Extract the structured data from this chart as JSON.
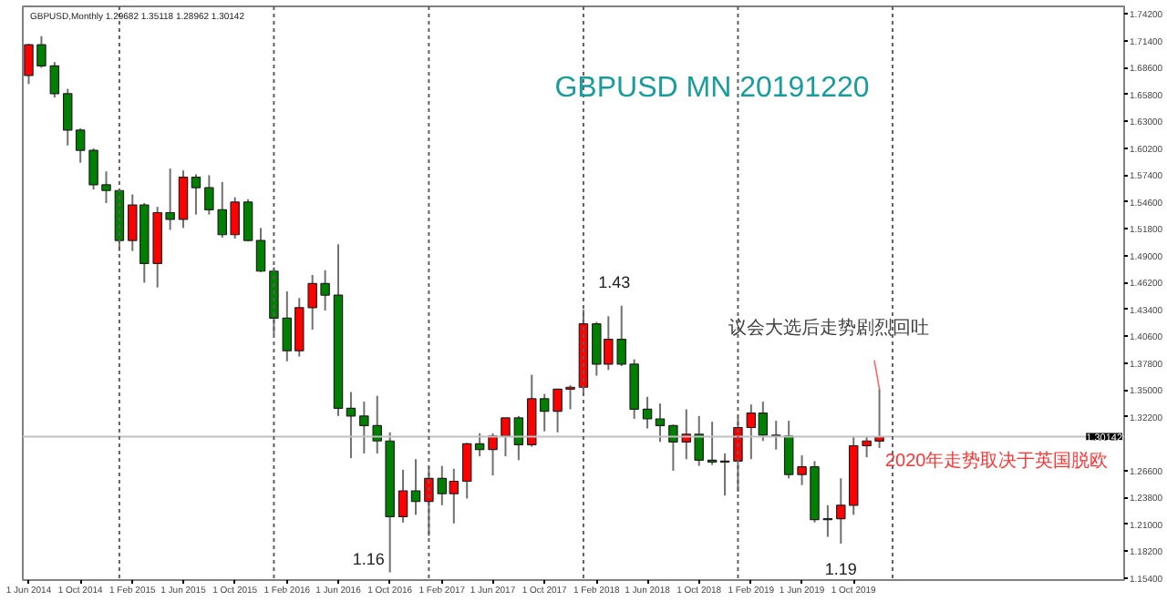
{
  "chart_data": {
    "type": "candlestick",
    "title": "GBPUSD MN 20191220",
    "x": [
      "2014-06",
      "2014-07",
      "2014-08",
      "2014-09",
      "2014-10",
      "2014-11",
      "2014-12",
      "2015-01",
      "2015-02",
      "2015-03",
      "2015-04",
      "2015-05",
      "2015-06",
      "2015-07",
      "2015-08",
      "2015-09",
      "2015-10",
      "2015-11",
      "2015-12",
      "2016-01",
      "2016-02",
      "2016-03",
      "2016-04",
      "2016-05",
      "2016-06",
      "2016-07",
      "2016-08",
      "2016-09",
      "2016-10",
      "2016-11",
      "2016-12",
      "2017-01",
      "2017-02",
      "2017-03",
      "2017-04",
      "2017-05",
      "2017-06",
      "2017-07",
      "2017-08",
      "2017-09",
      "2017-10",
      "2017-11",
      "2017-12",
      "2018-01",
      "2018-02",
      "2018-03",
      "2018-04",
      "2018-05",
      "2018-06",
      "2018-07",
      "2018-08",
      "2018-09",
      "2018-10",
      "2018-11",
      "2018-12",
      "2019-01",
      "2019-02",
      "2019-03",
      "2019-04",
      "2019-05",
      "2019-06",
      "2019-07",
      "2019-08",
      "2019-09",
      "2019-10",
      "2019-11",
      "2019-12"
    ],
    "ohlc": [
      [
        1.678,
        1.711,
        1.669,
        1.71
      ],
      [
        1.71,
        1.719,
        1.686,
        1.688
      ],
      [
        1.688,
        1.692,
        1.655,
        1.659
      ],
      [
        1.659,
        1.664,
        1.605,
        1.621
      ],
      [
        1.621,
        1.623,
        1.587,
        1.6
      ],
      [
        1.6,
        1.602,
        1.559,
        1.564
      ],
      [
        1.564,
        1.578,
        1.545,
        1.558
      ],
      [
        1.558,
        1.56,
        1.495,
        1.506
      ],
      [
        1.506,
        1.554,
        1.495,
        1.543
      ],
      [
        1.543,
        1.545,
        1.462,
        1.482
      ],
      [
        1.482,
        1.541,
        1.457,
        1.535
      ],
      [
        1.535,
        1.581,
        1.517,
        1.528
      ],
      [
        1.528,
        1.579,
        1.519,
        1.572
      ],
      [
        1.572,
        1.575,
        1.533,
        1.561
      ],
      [
        1.561,
        1.574,
        1.533,
        1.538
      ],
      [
        1.538,
        1.567,
        1.509,
        1.512
      ],
      [
        1.512,
        1.551,
        1.508,
        1.546
      ],
      [
        1.546,
        1.549,
        1.505,
        1.506
      ],
      [
        1.506,
        1.519,
        1.473,
        1.474
      ],
      [
        1.474,
        1.478,
        1.408,
        1.425
      ],
      [
        1.425,
        1.453,
        1.38,
        1.391
      ],
      [
        1.391,
        1.446,
        1.385,
        1.436
      ],
      [
        1.436,
        1.47,
        1.413,
        1.461
      ],
      [
        1.461,
        1.475,
        1.433,
        1.449
      ],
      [
        1.449,
        1.502,
        1.323,
        1.331
      ],
      [
        1.331,
        1.348,
        1.279,
        1.323
      ],
      [
        1.323,
        1.338,
        1.284,
        1.313
      ],
      [
        1.313,
        1.344,
        1.284,
        1.297
      ],
      [
        1.297,
        1.306,
        1.16,
        1.218
      ],
      [
        1.218,
        1.267,
        1.212,
        1.245
      ],
      [
        1.245,
        1.278,
        1.22,
        1.234
      ],
      [
        1.234,
        1.27,
        1.198,
        1.258
      ],
      [
        1.258,
        1.271,
        1.23,
        1.242
      ],
      [
        1.242,
        1.268,
        1.211,
        1.255
      ],
      [
        1.255,
        1.295,
        1.237,
        1.294
      ],
      [
        1.294,
        1.305,
        1.281,
        1.288
      ],
      [
        1.288,
        1.305,
        1.261,
        1.302
      ],
      [
        1.302,
        1.321,
        1.281,
        1.321
      ],
      [
        1.321,
        1.323,
        1.277,
        1.293
      ],
      [
        1.293,
        1.366,
        1.291,
        1.341
      ],
      [
        1.341,
        1.346,
        1.307,
        1.328
      ],
      [
        1.328,
        1.351,
        1.306,
        1.351
      ],
      [
        1.351,
        1.355,
        1.33,
        1.353
      ],
      [
        1.353,
        1.434,
        1.345,
        1.419
      ],
      [
        1.419,
        1.421,
        1.365,
        1.377
      ],
      [
        1.377,
        1.427,
        1.371,
        1.403
      ],
      [
        1.403,
        1.438,
        1.375,
        1.377
      ],
      [
        1.377,
        1.382,
        1.32,
        1.33
      ],
      [
        1.33,
        1.343,
        1.31,
        1.32
      ],
      [
        1.32,
        1.336,
        1.296,
        1.313
      ],
      [
        1.313,
        1.314,
        1.266,
        1.296
      ],
      [
        1.296,
        1.33,
        1.278,
        1.304
      ],
      [
        1.304,
        1.323,
        1.271,
        1.277
      ],
      [
        1.277,
        1.317,
        1.272,
        1.275
      ],
      [
        1.275,
        1.284,
        1.24,
        1.276
      ],
      [
        1.276,
        1.322,
        1.244,
        1.311
      ],
      [
        1.311,
        1.335,
        1.278,
        1.326
      ],
      [
        1.326,
        1.338,
        1.297,
        1.303
      ],
      [
        1.303,
        1.318,
        1.288,
        1.302
      ],
      [
        1.302,
        1.318,
        1.258,
        1.262
      ],
      [
        1.262,
        1.282,
        1.251,
        1.27
      ],
      [
        1.27,
        1.276,
        1.212,
        1.215
      ],
      [
        1.215,
        1.23,
        1.197,
        1.216
      ],
      [
        1.216,
        1.258,
        1.19,
        1.23
      ],
      [
        1.23,
        1.301,
        1.22,
        1.292
      ],
      [
        1.292,
        1.301,
        1.28,
        1.297
      ],
      [
        1.29682,
        1.35118,
        1.28962,
        1.30142
      ]
    ],
    "colors": [
      "#ff0000",
      "#008000",
      "#008000",
      "#008000",
      "#008000",
      "#008000",
      "#008000",
      "#008000",
      "#ff0000",
      "#008000",
      "#ff0000",
      "#008000",
      "#ff0000",
      "#008000",
      "#008000",
      "#008000",
      "#ff0000",
      "#008000",
      "#008000",
      "#008000",
      "#008000",
      "#ff0000",
      "#ff0000",
      "#008000",
      "#008000",
      "#008000",
      "#008000",
      "#008000",
      "#008000",
      "#ff0000",
      "#008000",
      "#ff0000",
      "#008000",
      "#ff0000",
      "#ff0000",
      "#008000",
      "#ff0000",
      "#ff0000",
      "#008000",
      "#ff0000",
      "#008000",
      "#ff0000",
      "#ff0000",
      "#ff0000",
      "#008000",
      "#ff0000",
      "#008000",
      "#008000",
      "#008000",
      "#008000",
      "#008000",
      "#ff0000",
      "#008000",
      "#008000",
      "#ff0000",
      "#ff0000",
      "#ff0000",
      "#008000",
      "#008000",
      "#008000",
      "#ff0000",
      "#008000",
      "#ff0000",
      "#ff0000",
      "#ff0000",
      "#ff0000",
      "#ff0000"
    ],
    "xlim": [
      "2014-05-18",
      "2021-07-01"
    ],
    "xticks": [
      {
        "value": "2014-06",
        "label": "1 Jun 2014"
      },
      {
        "value": "2014-10",
        "label": "1 Oct 2014"
      },
      {
        "value": "2015-02",
        "label": "1 Feb 2015"
      },
      {
        "value": "2015-06",
        "label": "1 Jun 2015"
      },
      {
        "value": "2015-10",
        "label": "1 Oct 2015"
      },
      {
        "value": "2016-02",
        "label": "1 Feb 2016"
      },
      {
        "value": "2016-06",
        "label": "1 Jun 2016"
      },
      {
        "value": "2016-10",
        "label": "1 Oct 2016"
      },
      {
        "value": "2017-02",
        "label": "1 Feb 2017"
      },
      {
        "value": "2017-06",
        "label": "1 Jun 2017"
      },
      {
        "value": "2017-10",
        "label": "1 Oct 2017"
      },
      {
        "value": "2018-02",
        "label": "1 Feb 2018"
      },
      {
        "value": "2018-06",
        "label": "1 Jun 2018"
      },
      {
        "value": "2018-10",
        "label": "1 Oct 2018"
      },
      {
        "value": "2019-02",
        "label": "1 Feb 2019"
      },
      {
        "value": "2019-06",
        "label": "1 Jun 2019"
      },
      {
        "value": "2019-10",
        "label": "1 Oct 2019"
      }
    ],
    "ylim": [
      1.152,
      1.75
    ],
    "yticks": [
      {
        "value": 1.154,
        "label": "1.15400"
      },
      {
        "value": 1.182,
        "label": "1.18200"
      },
      {
        "value": 1.21,
        "label": "1.21000"
      },
      {
        "value": 1.238,
        "label": "1.23800"
      },
      {
        "value": 1.266,
        "label": "1.26600"
      },
      {
        "value": 1.322,
        "label": "1.32200"
      },
      {
        "value": 1.35,
        "label": "1.35000"
      },
      {
        "value": 1.378,
        "label": "1.37800"
      },
      {
        "value": 1.406,
        "label": "1.40600"
      },
      {
        "value": 1.434,
        "label": "1.43400"
      },
      {
        "value": 1.462,
        "label": "1.46200"
      },
      {
        "value": 1.49,
        "label": "1.49000"
      },
      {
        "value": 1.518,
        "label": "1.51800"
      },
      {
        "value": 1.546,
        "label": "1.54600"
      },
      {
        "value": 1.574,
        "label": "1.57400"
      },
      {
        "value": 1.602,
        "label": "1.60200"
      },
      {
        "value": 1.63,
        "label": "1.63000"
      },
      {
        "value": 1.658,
        "label": "1.65800"
      },
      {
        "value": 1.686,
        "label": "1.68600"
      },
      {
        "value": 1.714,
        "label": "1.71400"
      },
      {
        "value": 1.742,
        "label": "1.74200"
      }
    ],
    "ref_lines": [
      {
        "axis": "y",
        "value": 1.30142,
        "label": "1.30142",
        "color": "#c0c0c0",
        "line_style": "solid"
      },
      {
        "axis": "x",
        "value": "2015-01",
        "label": null,
        "color": "#606060",
        "line_style": "dotted"
      },
      {
        "axis": "x",
        "value": "2016-01",
        "label": null,
        "color": "#606060",
        "line_style": "dotted"
      },
      {
        "axis": "x",
        "value": "2017-01",
        "label": null,
        "color": "#606060",
        "line_style": "dotted"
      },
      {
        "axis": "x",
        "value": "2018-01",
        "label": null,
        "color": "#606060",
        "line_style": "dotted"
      },
      {
        "axis": "x",
        "value": "2019-01",
        "label": null,
        "color": "#606060",
        "line_style": "dotted"
      },
      {
        "axis": "x",
        "value": "2020-01",
        "label": null,
        "color": "#606060",
        "line_style": "dotted"
      }
    ],
    "annotations": [
      "GBPUSD,Monthly  1.29682 1.35118 1.28962 1.30142",
      {
        "text": "1.43",
        "x": "2018-04",
        "y": 1.438
      },
      {
        "text": "1.16",
        "x": "2016-10",
        "y": 1.16
      },
      {
        "text": "1.19",
        "x": "2019-09",
        "y": 1.19
      },
      {
        "text": "议会大选后走势剧烈回吐",
        "x": "2019-12",
        "y": 1.35118
      },
      "2020年走势取决于英国脱欧"
    ],
    "grid": false
  }
}
